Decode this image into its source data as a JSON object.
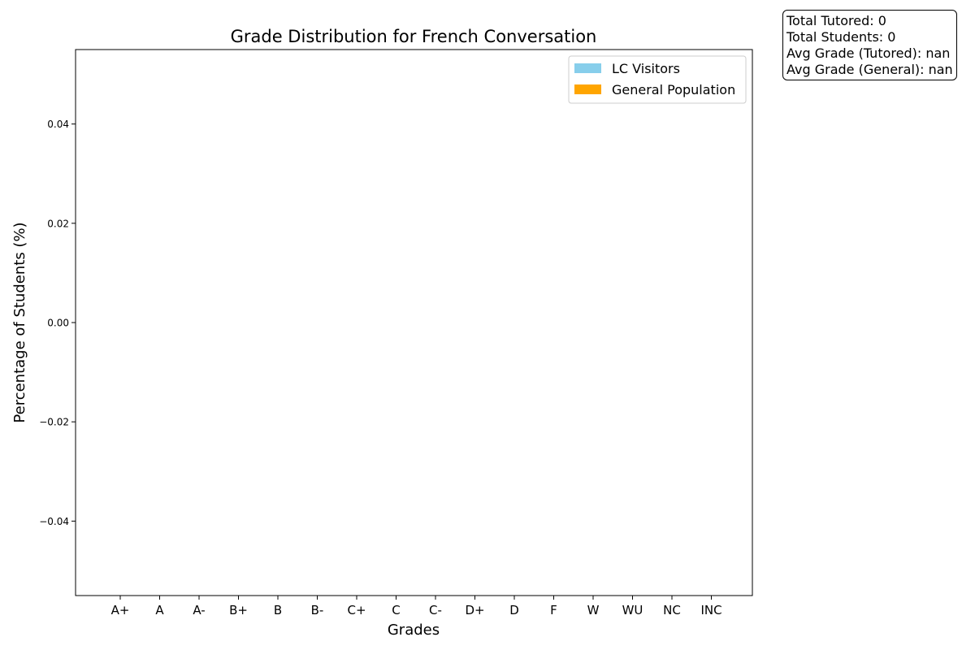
{
  "stats": {
    "total_tutored": "Total Tutored: 0",
    "total_students": "Total Students: 0",
    "avg_tutored": "Avg Grade (Tutored): nan",
    "avg_general": "Avg Grade (General): nan"
  },
  "colors": {
    "lc_visitors": "#87ceeb",
    "general_population": "#ffa500"
  },
  "chart_data": {
    "type": "bar",
    "title": "Grade Distribution for French Conversation",
    "xlabel": "Grades",
    "ylabel": "Percentage of Students (%)",
    "categories": [
      "A+",
      "A",
      "A-",
      "B+",
      "B",
      "B-",
      "C+",
      "C",
      "C-",
      "D+",
      "D",
      "F",
      "W",
      "WU",
      "NC",
      "INC"
    ],
    "series": [
      {
        "name": "LC Visitors",
        "values": [
          0,
          0,
          0,
          0,
          0,
          0,
          0,
          0,
          0,
          0,
          0,
          0,
          0,
          0,
          0,
          0
        ]
      },
      {
        "name": "General Population",
        "values": [
          0,
          0,
          0,
          0,
          0,
          0,
          0,
          0,
          0,
          0,
          0,
          0,
          0,
          0,
          0,
          0
        ]
      }
    ],
    "ylim": [
      -0.055,
      0.055
    ],
    "yticks": [
      0.04,
      0.02,
      0.0,
      -0.02,
      -0.04
    ],
    "ytick_labels": [
      "0.04",
      "0.02",
      "0.00",
      "−0.02",
      "−0.04"
    ],
    "grid": false,
    "legend": "top-right"
  }
}
